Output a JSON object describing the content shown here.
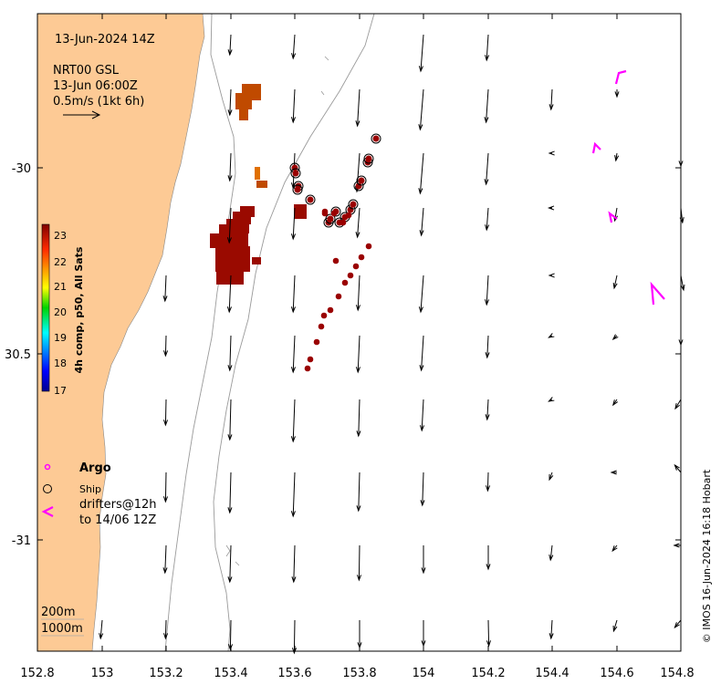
{
  "info": {
    "date_label": "13-Jun-2024 14Z",
    "product": "NRT00 GSL",
    "product_time": "13-Jun 06:00Z",
    "scale_label": "0.5m/s (1kt 6h)"
  },
  "axes": {
    "x_ticks": [
      "152.8",
      "153",
      "153.2",
      "153.4",
      "153.6",
      "153.8",
      "154",
      "154.2",
      "154.4",
      "154.6",
      "154.8"
    ],
    "y_ticks": [
      "-30",
      "30.5",
      "-31"
    ]
  },
  "colorbar": {
    "title": "4h comp, p50, All Sats",
    "ticks": [
      "23",
      "22",
      "21",
      "20",
      "19",
      "18",
      "17"
    ]
  },
  "legend": {
    "argo": "Argo",
    "ship": "Ship",
    "drifters_line1": "drifters@12h",
    "drifters_line2": "to 14/06 12Z"
  },
  "isobaths": {
    "shallow": "200m",
    "deep": "1000m"
  },
  "credit": "© IMOS 16-Jun-2024 16:18 Hobart",
  "colors": {
    "land": "#fdca95",
    "sst_dark": "#9a0a00",
    "sst_mid": "#c04a00",
    "argo": "#ff00ff",
    "drifter": "#9a0000"
  }
}
